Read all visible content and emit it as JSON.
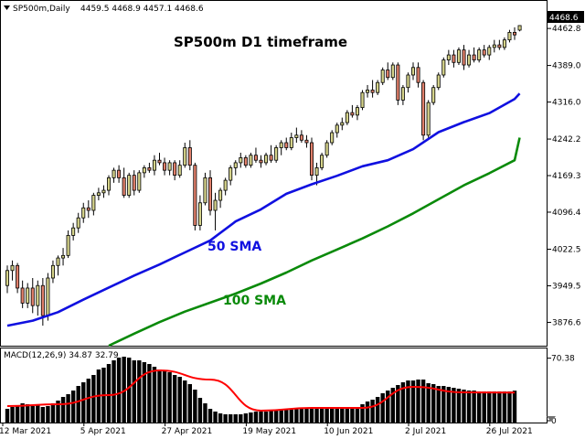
{
  "header": {
    "symbol": "SP500m,Daily",
    "ohlc": "4459.5 4468.9 4457.1 4468.6"
  },
  "title": "SP500m D1 timeframe",
  "annotations": {
    "sma50_label": "50 SMA",
    "sma100_label": "100 SMA"
  },
  "price_label": "4468.6",
  "macd_header": "MACD(12,26,9) 34.87 32.79",
  "colors": {
    "bull": "#d5d38a",
    "bear": "#e07f6a",
    "sma50": "#1010e0",
    "sma100": "#0a8a0a",
    "macd_signal": "#ff0000",
    "macd_hist": "#000000"
  },
  "chart_data": [
    {
      "type": "candlestick",
      "title": "SP500m D1 timeframe",
      "y_ticks": [
        3876.6,
        3949.5,
        4022.5,
        4096.4,
        4169.3,
        4242.2,
        4316.0,
        4389.0,
        4462.8
      ],
      "ylim": [
        3830,
        4505
      ],
      "x_ticks": [
        "12 Mar 2021",
        "5 Apr 2021",
        "27 Apr 2021",
        "19 May 2021",
        "10 Jun 2021",
        "2 Jul 2021",
        "26 Jul 2021"
      ],
      "x_tick_index": [
        0,
        16,
        32,
        48,
        64,
        80,
        96
      ],
      "candles": [
        [
          3950,
          3990,
          3935,
          3980
        ],
        [
          3980,
          4000,
          3960,
          3990
        ],
        [
          3990,
          3995,
          3935,
          3945
        ],
        [
          3945,
          3960,
          3905,
          3915
        ],
        [
          3915,
          3955,
          3905,
          3945
        ],
        [
          3945,
          3965,
          3895,
          3910
        ],
        [
          3910,
          3960,
          3890,
          3950
        ],
        [
          3950,
          3965,
          3870,
          3890
        ],
        [
          3890,
          3975,
          3880,
          3965
        ],
        [
          3965,
          4000,
          3955,
          3990
        ],
        [
          3990,
          4010,
          3970,
          4005
        ],
        [
          4005,
          4025,
          3990,
          4010
        ],
        [
          4010,
          4060,
          4005,
          4050
        ],
        [
          4050,
          4075,
          4040,
          4065
        ],
        [
          4065,
          4095,
          4055,
          4085
        ],
        [
          4085,
          4115,
          4075,
          4105
        ],
        [
          4105,
          4120,
          4085,
          4100
        ],
        [
          4100,
          4135,
          4090,
          4130
        ],
        [
          4130,
          4145,
          4120,
          4135
        ],
        [
          4135,
          4150,
          4125,
          4140
        ],
        [
          4140,
          4170,
          4130,
          4165
        ],
        [
          4165,
          4185,
          4155,
          4180
        ],
        [
          4180,
          4190,
          4155,
          4165
        ],
        [
          4165,
          4185,
          4125,
          4130
        ],
        [
          4130,
          4175,
          4125,
          4170
        ],
        [
          4170,
          4180,
          4130,
          4140
        ],
        [
          4140,
          4180,
          4135,
          4175
        ],
        [
          4175,
          4190,
          4165,
          4185
        ],
        [
          4185,
          4195,
          4175,
          4180
        ],
        [
          4180,
          4210,
          4170,
          4200
        ],
        [
          4200,
          4215,
          4190,
          4195
        ],
        [
          4195,
          4205,
          4170,
          4180
        ],
        [
          4180,
          4200,
          4170,
          4195
        ],
        [
          4195,
          4200,
          4160,
          4170
        ],
        [
          4170,
          4200,
          4165,
          4190
        ],
        [
          4190,
          4235,
          4185,
          4225
        ],
        [
          4225,
          4240,
          4180,
          4190
        ],
        [
          4190,
          4195,
          4060,
          4070
        ],
        [
          4070,
          4130,
          4060,
          4115
        ],
        [
          4115,
          4175,
          4110,
          4165
        ],
        [
          4165,
          4180,
          4090,
          4100
        ],
        [
          4100,
          4135,
          4060,
          4120
        ],
        [
          4120,
          4145,
          4105,
          4140
        ],
        [
          4140,
          4165,
          4130,
          4160
        ],
        [
          4160,
          4190,
          4150,
          4185
        ],
        [
          4185,
          4200,
          4170,
          4195
        ],
        [
          4195,
          4215,
          4185,
          4205
        ],
        [
          4205,
          4210,
          4185,
          4190
        ],
        [
          4190,
          4215,
          4185,
          4210
        ],
        [
          4210,
          4225,
          4195,
          4200
        ],
        [
          4200,
          4210,
          4185,
          4195
        ],
        [
          4195,
          4215,
          4190,
          4210
        ],
        [
          4210,
          4230,
          4195,
          4200
        ],
        [
          4200,
          4230,
          4195,
          4225
        ],
        [
          4225,
          4240,
          4210,
          4235
        ],
        [
          4235,
          4245,
          4220,
          4225
        ],
        [
          4225,
          4255,
          4220,
          4245
        ],
        [
          4245,
          4265,
          4235,
          4250
        ],
        [
          4250,
          4260,
          4235,
          4240
        ],
        [
          4240,
          4250,
          4225,
          4235
        ],
        [
          4235,
          4245,
          4160,
          4170
        ],
        [
          4170,
          4195,
          4150,
          4185
        ],
        [
          4185,
          4215,
          4180,
          4210
        ],
        [
          4210,
          4240,
          4205,
          4235
        ],
        [
          4235,
          4260,
          4230,
          4255
        ],
        [
          4255,
          4275,
          4245,
          4270
        ],
        [
          4270,
          4285,
          4260,
          4275
        ],
        [
          4275,
          4300,
          4270,
          4295
        ],
        [
          4295,
          4310,
          4285,
          4290
        ],
        [
          4290,
          4310,
          4280,
          4305
        ],
        [
          4305,
          4340,
          4300,
          4335
        ],
        [
          4335,
          4350,
          4325,
          4340
        ],
        [
          4340,
          4360,
          4325,
          4335
        ],
        [
          4335,
          4360,
          4330,
          4355
        ],
        [
          4355,
          4385,
          4350,
          4380
        ],
        [
          4380,
          4395,
          4360,
          4365
        ],
        [
          4365,
          4395,
          4360,
          4390
        ],
        [
          4390,
          4395,
          4310,
          4320
        ],
        [
          4320,
          4350,
          4310,
          4345
        ],
        [
          4345,
          4375,
          4335,
          4370
        ],
        [
          4370,
          4395,
          4360,
          4385
        ],
        [
          4385,
          4395,
          4345,
          4355
        ],
        [
          4355,
          4360,
          4240,
          4250
        ],
        [
          4250,
          4320,
          4245,
          4315
        ],
        [
          4315,
          4350,
          4310,
          4345
        ],
        [
          4345,
          4375,
          4340,
          4370
        ],
        [
          4370,
          4405,
          4365,
          4400
        ],
        [
          4400,
          4420,
          4390,
          4410
        ],
        [
          4410,
          4420,
          4385,
          4395
        ],
        [
          4395,
          4425,
          4390,
          4420
        ],
        [
          4420,
          4430,
          4380,
          4390
        ],
        [
          4390,
          4420,
          4385,
          4410
        ],
        [
          4410,
          4425,
          4395,
          4400
        ],
        [
          4400,
          4425,
          4395,
          4420
        ],
        [
          4420,
          4430,
          4405,
          4410
        ],
        [
          4410,
          4430,
          4400,
          4425
        ],
        [
          4425,
          4440,
          4415,
          4430
        ],
        [
          4430,
          4440,
          4420,
          4425
        ],
        [
          4425,
          4445,
          4420,
          4440
        ],
        [
          4440,
          4460,
          4435,
          4455
        ],
        [
          4455,
          4465,
          4440,
          4450
        ],
        [
          4459.5,
          4468.9,
          4457.1,
          4468.6
        ]
      ],
      "series": [
        {
          "name": "50 SMA",
          "x": [
            0,
            5,
            10,
            15,
            20,
            25,
            30,
            35,
            40,
            45,
            50,
            55,
            60,
            65,
            70,
            75,
            80,
            85,
            90,
            95,
            100,
            101
          ],
          "values": [
            3870,
            3880,
            3897,
            3922,
            3946,
            3970,
            3992,
            4016,
            4040,
            4078,
            4102,
            4133,
            4152,
            4169,
            4188,
            4200,
            4222,
            4256,
            4276,
            4294,
            4322,
            4333
          ]
        },
        {
          "name": "100 SMA",
          "x": [
            20,
            25,
            30,
            35,
            40,
            45,
            50,
            55,
            60,
            65,
            70,
            75,
            80,
            85,
            90,
            95,
            100,
            101
          ],
          "values": [
            3830,
            3854,
            3877,
            3898,
            3916,
            3934,
            3954,
            3976,
            4000,
            4022,
            4044,
            4068,
            4094,
            4122,
            4150,
            4174,
            4200,
            4245
          ]
        }
      ]
    },
    {
      "type": "bar",
      "title": "MACD(12,26,9) 34.87 32.79",
      "y_ticks": [
        70.38,
        0
      ],
      "ylim": [
        0,
        76
      ],
      "histogram": [
        15,
        17,
        19,
        21,
        20,
        18,
        19,
        17,
        18,
        21,
        24,
        28,
        31,
        35,
        40,
        44,
        48,
        52,
        58,
        60,
        64,
        68,
        71,
        72,
        71,
        68,
        68,
        66,
        64,
        61,
        58,
        56,
        55,
        52,
        50,
        46,
        42,
        36,
        27,
        21,
        15,
        12,
        10,
        9,
        9,
        9,
        9,
        10,
        11,
        12,
        12,
        12,
        13,
        14,
        14,
        15,
        15,
        15,
        16,
        16,
        16,
        16,
        16,
        17,
        15,
        15,
        15,
        15,
        16,
        17,
        20,
        23,
        25,
        28,
        32,
        35,
        38,
        41,
        44,
        46,
        46,
        47,
        47,
        43,
        42,
        40,
        40,
        39,
        38,
        37,
        36,
        35,
        35,
        34,
        34,
        34,
        34,
        34,
        34,
        34,
        34.87
      ],
      "signal_x": [
        0,
        10,
        20,
        30,
        40,
        50,
        60,
        70,
        80,
        90,
        100
      ],
      "signal": [
        18,
        20,
        30,
        57,
        47,
        13,
        16,
        16,
        39,
        33,
        32.79
      ]
    }
  ]
}
